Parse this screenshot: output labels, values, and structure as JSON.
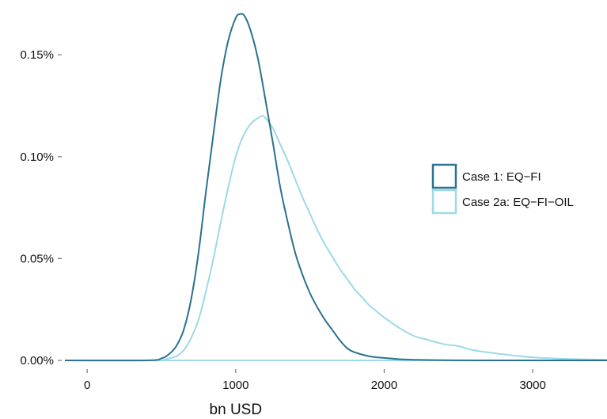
{
  "chart_data": {
    "type": "line",
    "title": "",
    "xlabel": "bn USD",
    "ylabel": "",
    "xlim": [
      -150,
      3500
    ],
    "ylim": [
      0,
      0.00173
    ],
    "x_ticks": [
      0,
      1000,
      2000,
      3000
    ],
    "x_tick_labels": [
      "0",
      "1000",
      "2000",
      "3000"
    ],
    "y_ticks": [
      0,
      0.0005,
      0.001,
      0.0015
    ],
    "y_tick_labels": [
      "0.00%",
      "0.05%",
      "0.10%",
      "0.15%"
    ],
    "grid": false,
    "legend_position": "right",
    "series": [
      {
        "name": "Case 1: EQ−FI",
        "color": "#2a7290",
        "x": [
          -150,
          400,
          500,
          550,
          600,
          650,
          700,
          750,
          800,
          850,
          900,
          950,
          1000,
          1030,
          1060,
          1100,
          1150,
          1200,
          1250,
          1300,
          1350,
          1400,
          1450,
          1500,
          1550,
          1600,
          1650,
          1700,
          1750,
          1800,
          1900,
          2000,
          2100,
          2200,
          2400,
          2600,
          3000,
          3500
        ],
        "y": [
          0,
          0,
          1e-05,
          3e-05,
          7e-05,
          0.00015,
          0.0003,
          0.00053,
          0.00083,
          0.00111,
          0.00138,
          0.00157,
          0.00168,
          0.0017,
          0.00169,
          0.00162,
          0.00148,
          0.00128,
          0.00107,
          0.00085,
          0.00068,
          0.00053,
          0.00042,
          0.00033,
          0.00026,
          0.0002,
          0.00015,
          0.0001,
          6e-05,
          4e-05,
          2e-05,
          1.2e-05,
          6e-06,
          3e-06,
          1e-06,
          0,
          0,
          0
        ]
      },
      {
        "name": "Case 2a: EQ−FI−OIL",
        "color": "#9dd9e8",
        "x": [
          -150,
          400,
          500,
          550,
          600,
          650,
          700,
          750,
          800,
          850,
          900,
          950,
          1000,
          1050,
          1100,
          1150,
          1180,
          1200,
          1250,
          1300,
          1350,
          1400,
          1450,
          1500,
          1550,
          1600,
          1650,
          1700,
          1750,
          1800,
          1850,
          1900,
          1950,
          2000,
          2100,
          2200,
          2300,
          2400,
          2500,
          2600,
          2800,
          3000,
          3200,
          3500
        ],
        "y": [
          0,
          0,
          0,
          1e-05,
          2e-05,
          5e-05,
          0.00011,
          0.0002,
          0.00034,
          0.0005,
          0.00068,
          0.00085,
          0.001,
          0.0011,
          0.00116,
          0.00119,
          0.0012,
          0.00119,
          0.00114,
          0.00106,
          0.00098,
          0.00089,
          0.0008,
          0.00072,
          0.00064,
          0.00057,
          0.00051,
          0.00045,
          0.0004,
          0.00035,
          0.00031,
          0.00027,
          0.00024,
          0.00021,
          0.00016,
          0.00012,
          0.0001,
          8e-05,
          7e-05,
          5e-05,
          3e-05,
          1.5e-05,
          8e-06,
          3e-06
        ]
      }
    ]
  }
}
